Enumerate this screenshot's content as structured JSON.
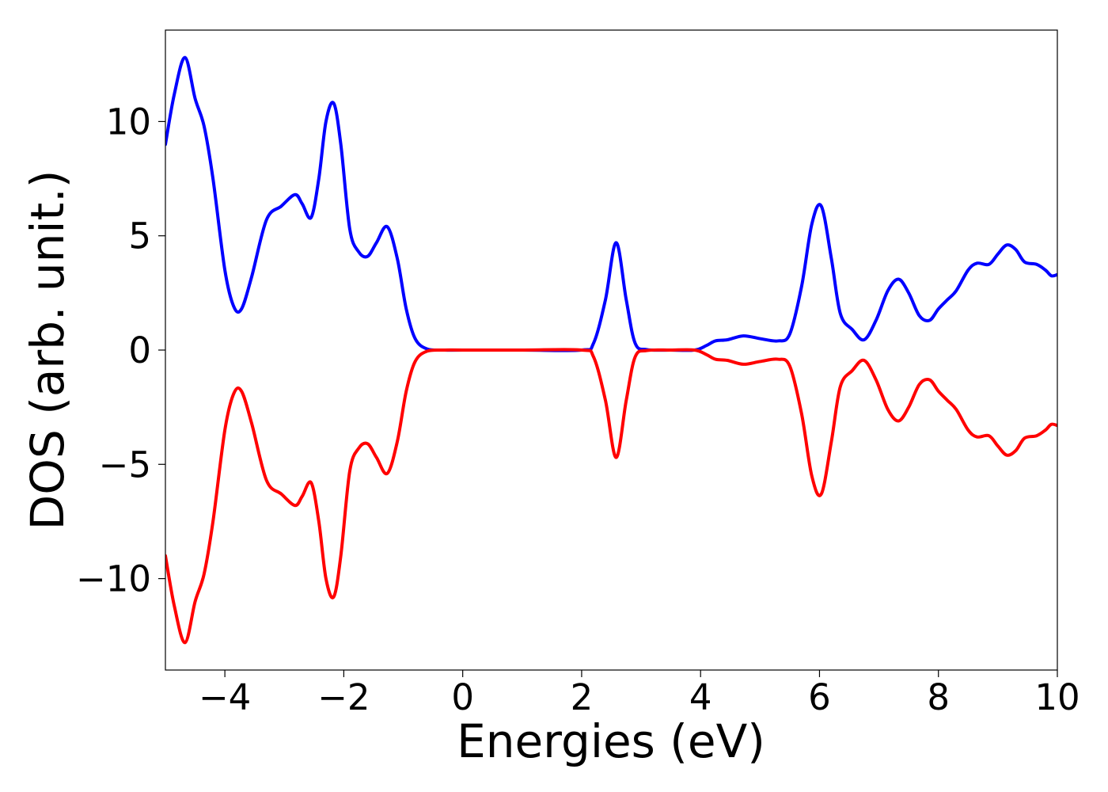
{
  "chart_data": {
    "type": "line",
    "title": "",
    "xlabel": "Energies (eV)",
    "ylabel": "DOS (arb. unit.)",
    "xlim": [
      -5,
      10
    ],
    "ylim": [
      -14,
      14
    ],
    "xticks": [
      -4,
      -2,
      0,
      2,
      4,
      6,
      8,
      10
    ],
    "yticks": [
      -10,
      -5,
      0,
      5,
      10
    ],
    "xtick_labels": [
      "−4",
      "−2",
      "0",
      "2",
      "4",
      "6",
      "8",
      "10"
    ],
    "ytick_labels": [
      "−10",
      "−5",
      "0",
      "5",
      "10"
    ],
    "grid": false,
    "legend": "none",
    "series": [
      {
        "color": "#0000ff",
        "x": [
          -5.0,
          -4.85,
          -4.67,
          -4.5,
          -4.35,
          -4.2,
          -4.0,
          -3.85,
          -3.72,
          -3.55,
          -3.3,
          -3.05,
          -2.82,
          -2.7,
          -2.55,
          -2.42,
          -2.3,
          -2.17,
          -2.05,
          -1.9,
          -1.75,
          -1.6,
          -1.45,
          -1.27,
          -1.1,
          -0.95,
          -0.8,
          -0.6,
          -0.3,
          0.0,
          1.0,
          2.0,
          2.2,
          2.4,
          2.58,
          2.75,
          2.9,
          3.1,
          3.5,
          3.9,
          4.1,
          4.25,
          4.45,
          4.72,
          5.0,
          5.3,
          5.5,
          5.7,
          5.87,
          6.03,
          6.2,
          6.35,
          6.55,
          6.75,
          6.95,
          7.15,
          7.33,
          7.5,
          7.68,
          7.85,
          8.0,
          8.15,
          8.3,
          8.5,
          8.65,
          8.85,
          9.0,
          9.15,
          9.3,
          9.45,
          9.65,
          9.8,
          9.9,
          10.0
        ],
        "y": [
          9.0,
          11.2,
          12.8,
          11.0,
          9.8,
          7.5,
          3.5,
          1.9,
          1.8,
          3.2,
          5.7,
          6.3,
          6.8,
          6.4,
          5.8,
          7.5,
          10.0,
          10.8,
          9.0,
          5.3,
          4.3,
          4.1,
          4.7,
          5.4,
          4.0,
          1.8,
          0.5,
          0.05,
          0.0,
          0.0,
          0.0,
          0.0,
          0.3,
          2.2,
          4.7,
          2.2,
          0.3,
          0.02,
          0.0,
          0.0,
          0.2,
          0.4,
          0.45,
          0.62,
          0.5,
          0.4,
          0.7,
          2.8,
          5.5,
          6.3,
          4.0,
          1.6,
          0.9,
          0.45,
          1.3,
          2.6,
          3.1,
          2.5,
          1.5,
          1.3,
          1.8,
          2.2,
          2.6,
          3.5,
          3.8,
          3.75,
          4.2,
          4.6,
          4.4,
          3.85,
          3.75,
          3.5,
          3.25,
          3.3
        ]
      },
      {
        "color": "#ff0000",
        "x": [
          -5.0,
          -4.85,
          -4.67,
          -4.5,
          -4.35,
          -4.2,
          -4.0,
          -3.85,
          -3.72,
          -3.55,
          -3.3,
          -3.05,
          -2.82,
          -2.7,
          -2.55,
          -2.42,
          -2.3,
          -2.17,
          -2.05,
          -1.9,
          -1.75,
          -1.6,
          -1.45,
          -1.27,
          -1.1,
          -0.95,
          -0.8,
          -0.6,
          -0.3,
          0.0,
          1.0,
          2.0,
          2.2,
          2.4,
          2.58,
          2.75,
          2.9,
          3.1,
          3.5,
          3.9,
          4.1,
          4.25,
          4.45,
          4.72,
          5.0,
          5.3,
          5.5,
          5.7,
          5.87,
          6.03,
          6.2,
          6.35,
          6.55,
          6.75,
          6.95,
          7.15,
          7.33,
          7.5,
          7.68,
          7.85,
          8.0,
          8.15,
          8.3,
          8.5,
          8.65,
          8.85,
          9.0,
          9.15,
          9.3,
          9.45,
          9.65,
          9.8,
          9.9,
          10.0
        ],
        "y": [
          -9.0,
          -11.2,
          -12.8,
          -11.0,
          -9.8,
          -7.5,
          -3.5,
          -1.9,
          -1.8,
          -3.2,
          -5.7,
          -6.3,
          -6.8,
          -6.4,
          -5.8,
          -7.5,
          -10.0,
          -10.8,
          -9.0,
          -5.3,
          -4.3,
          -4.1,
          -4.7,
          -5.4,
          -4.0,
          -1.8,
          -0.5,
          -0.05,
          0.0,
          0.0,
          0.0,
          0.0,
          -0.3,
          -2.2,
          -4.7,
          -2.2,
          -0.3,
          -0.02,
          0.0,
          0.0,
          -0.2,
          -0.4,
          -0.45,
          -0.62,
          -0.5,
          -0.4,
          -0.7,
          -2.8,
          -5.5,
          -6.3,
          -4.0,
          -1.6,
          -0.9,
          -0.45,
          -1.3,
          -2.6,
          -3.1,
          -2.5,
          -1.5,
          -1.3,
          -1.8,
          -2.2,
          -2.6,
          -3.5,
          -3.8,
          -3.75,
          -4.2,
          -4.6,
          -4.4,
          -3.85,
          -3.75,
          -3.5,
          -3.25,
          -3.3
        ]
      }
    ]
  }
}
